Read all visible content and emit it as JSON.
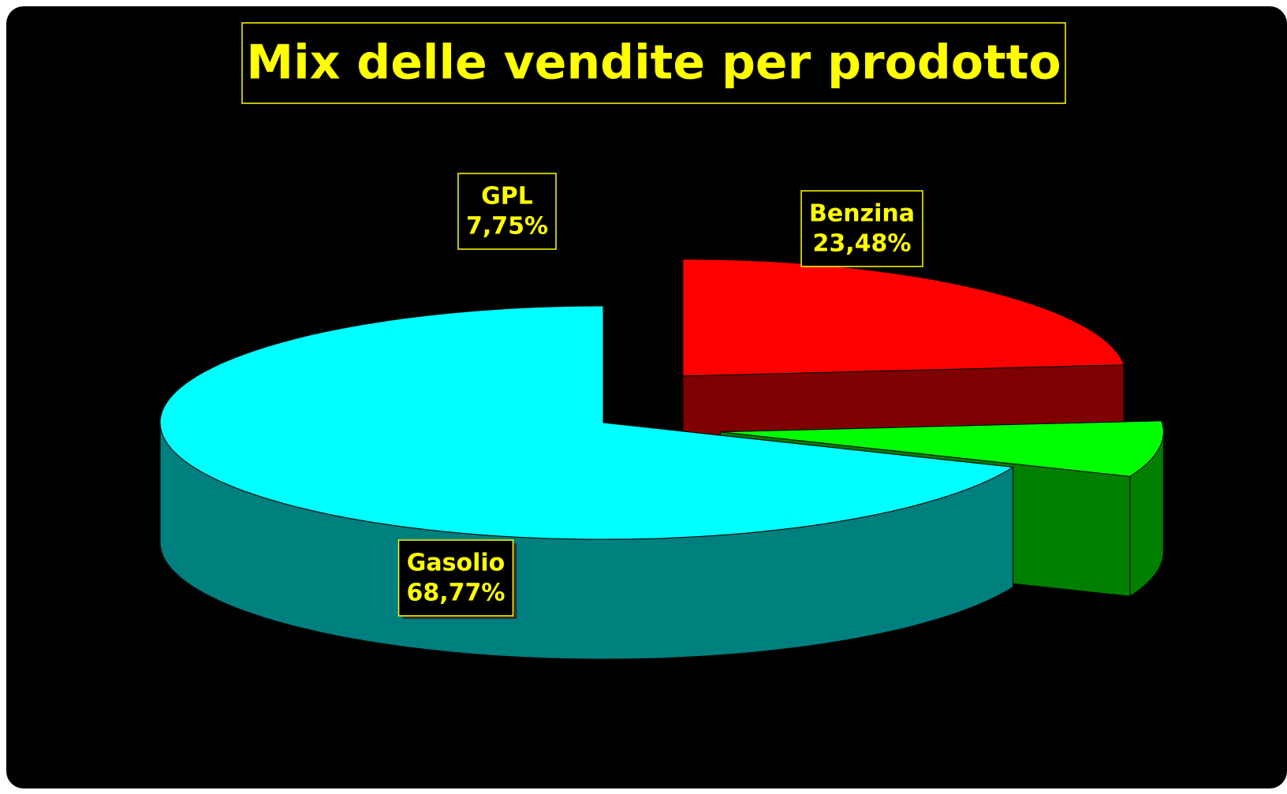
{
  "chart_data": {
    "type": "pie3d",
    "title": "Mix delle vendite per prodotto",
    "categories": [
      "Benzina",
      "GPL",
      "Gasolio"
    ],
    "values": [
      23.48,
      7.75,
      68.77
    ],
    "value_labels": [
      "23,48%",
      "7,75%",
      "68,77%"
    ],
    "colors": [
      "#ff0000",
      "#00ff00",
      "#00ffff"
    ]
  }
}
